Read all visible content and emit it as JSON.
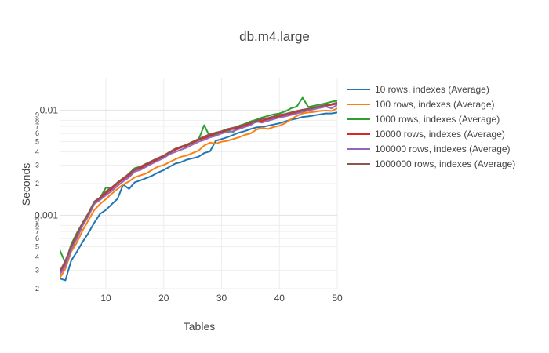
{
  "chart_data": {
    "type": "line",
    "title": "db.m4.large",
    "xlabel": "Tables",
    "ylabel": "Seconds",
    "xlim": [
      2,
      50
    ],
    "ylim": [
      0.0002,
      0.02
    ],
    "yscale": "log",
    "grid": true,
    "legend_position": "right",
    "x_ticks": [
      10,
      20,
      30,
      40,
      50
    ],
    "y_major_ticks": [
      {
        "value": 0.001,
        "label": "0.001"
      },
      {
        "value": 0.01,
        "label": "0.01"
      }
    ],
    "y_minor_ticks": [
      {
        "value": 0.0002,
        "label": "2"
      },
      {
        "value": 0.0003,
        "label": "3"
      },
      {
        "value": 0.0004,
        "label": "4"
      },
      {
        "value": 0.0005,
        "label": "5"
      },
      {
        "value": 0.0006,
        "label": "6"
      },
      {
        "value": 0.0007,
        "label": "7"
      },
      {
        "value": 0.0008,
        "label": "8"
      },
      {
        "value": 0.0009,
        "label": "9"
      },
      {
        "value": 0.002,
        "label": "2"
      },
      {
        "value": 0.003,
        "label": "3"
      },
      {
        "value": 0.004,
        "label": "4"
      },
      {
        "value": 0.005,
        "label": "5"
      },
      {
        "value": 0.006,
        "label": "6"
      },
      {
        "value": 0.007,
        "label": "7"
      },
      {
        "value": 0.008,
        "label": "8"
      },
      {
        "value": 0.009,
        "label": "9"
      }
    ],
    "series": [
      {
        "name": "10 rows, indexes (Average)",
        "color": "#1f77b4",
        "x": [
          2,
          3,
          4,
          5,
          6,
          7,
          8,
          9,
          10,
          11,
          12,
          13,
          14,
          15,
          16,
          17,
          18,
          19,
          20,
          21,
          22,
          23,
          24,
          25,
          26,
          27,
          28,
          29,
          30,
          31,
          32,
          33,
          34,
          35,
          36,
          37,
          38,
          39,
          40,
          41,
          42,
          43,
          44,
          45,
          46,
          47,
          48,
          49,
          50
        ],
        "y": [
          0.00025,
          0.00024,
          0.00037,
          0.00045,
          0.00056,
          0.00068,
          0.00085,
          0.00103,
          0.00112,
          0.00127,
          0.00143,
          0.00196,
          0.00178,
          0.00206,
          0.00215,
          0.00226,
          0.00238,
          0.00255,
          0.00269,
          0.00289,
          0.0031,
          0.0032,
          0.00338,
          0.00348,
          0.0036,
          0.0039,
          0.00405,
          0.0051,
          0.0053,
          0.00552,
          0.0058,
          0.0061,
          0.0063,
          0.0066,
          0.00685,
          0.0069,
          0.0071,
          0.0073,
          0.0075,
          0.0078,
          0.0081,
          0.0083,
          0.0086,
          0.0087,
          0.0089,
          0.0091,
          0.0093,
          0.0093,
          0.0095
        ]
      },
      {
        "name": "100 rows, indexes (Average)",
        "color": "#ff7f0e",
        "x": [
          2,
          3,
          4,
          5,
          6,
          7,
          8,
          9,
          10,
          11,
          12,
          13,
          14,
          15,
          16,
          17,
          18,
          19,
          20,
          21,
          22,
          23,
          24,
          25,
          26,
          27,
          28,
          29,
          30,
          31,
          32,
          33,
          34,
          35,
          36,
          37,
          38,
          39,
          40,
          41,
          42,
          43,
          44,
          45,
          46,
          47,
          48,
          49,
          50
        ],
        "y": [
          0.00025,
          0.00031,
          0.00045,
          0.00055,
          0.00072,
          0.0009,
          0.00112,
          0.00128,
          0.00142,
          0.0016,
          0.00178,
          0.00196,
          0.0021,
          0.0023,
          0.0024,
          0.0025,
          0.0027,
          0.0029,
          0.003,
          0.0032,
          0.0034,
          0.0036,
          0.0037,
          0.0039,
          0.0041,
          0.0046,
          0.0049,
          0.0048,
          0.005,
          0.0051,
          0.0053,
          0.0055,
          0.0058,
          0.006,
          0.0065,
          0.0068,
          0.0066,
          0.0069,
          0.0071,
          0.0075,
          0.0082,
          0.0088,
          0.0093,
          0.0095,
          0.0096,
          0.0098,
          0.0099,
          0.0098,
          0.0104
        ]
      },
      {
        "name": "1000 rows, indexes (Average)",
        "color": "#2ca02c",
        "x": [
          2,
          3,
          4,
          5,
          6,
          7,
          8,
          9,
          10,
          11,
          12,
          13,
          14,
          15,
          16,
          17,
          18,
          19,
          20,
          21,
          22,
          23,
          24,
          25,
          26,
          27,
          28,
          29,
          30,
          31,
          32,
          33,
          34,
          35,
          36,
          37,
          38,
          39,
          40,
          41,
          42,
          43,
          44,
          45,
          46,
          47,
          48,
          49,
          50
        ],
        "y": [
          0.00047,
          0.00035,
          0.00053,
          0.00068,
          0.00085,
          0.00105,
          0.00135,
          0.00147,
          0.00183,
          0.0018,
          0.00205,
          0.0022,
          0.0025,
          0.0028,
          0.0029,
          0.0031,
          0.0032,
          0.0034,
          0.0036,
          0.0039,
          0.0042,
          0.0044,
          0.0046,
          0.0049,
          0.0052,
          0.0072,
          0.0055,
          0.0058,
          0.0061,
          0.0064,
          0.0062,
          0.0071,
          0.0074,
          0.0078,
          0.0081,
          0.0085,
          0.0088,
          0.0091,
          0.0093,
          0.0097,
          0.0104,
          0.0108,
          0.0131,
          0.0107,
          0.011,
          0.0113,
          0.0116,
          0.012,
          0.0123
        ]
      },
      {
        "name": "10000 rows, indexes (Average)",
        "color": "#d62728",
        "x": [
          2,
          3,
          4,
          5,
          6,
          7,
          8,
          9,
          10,
          11,
          12,
          13,
          14,
          15,
          16,
          17,
          18,
          19,
          20,
          21,
          22,
          23,
          24,
          25,
          26,
          27,
          28,
          29,
          30,
          31,
          32,
          33,
          34,
          35,
          36,
          37,
          38,
          39,
          40,
          41,
          42,
          43,
          44,
          45,
          46,
          47,
          48,
          49,
          50
        ],
        "y": [
          0.00028,
          0.00035,
          0.00049,
          0.00063,
          0.00082,
          0.00102,
          0.00132,
          0.00145,
          0.00162,
          0.00178,
          0.002,
          0.0022,
          0.0024,
          0.0027,
          0.0028,
          0.003,
          0.0032,
          0.0034,
          0.0036,
          0.0039,
          0.0042,
          0.0044,
          0.0046,
          0.0049,
          0.0052,
          0.0054,
          0.0057,
          0.006,
          0.0062,
          0.0065,
          0.0066,
          0.0068,
          0.0071,
          0.0074,
          0.0077,
          0.0079,
          0.0082,
          0.0084,
          0.0087,
          0.0089,
          0.0092,
          0.0095,
          0.0098,
          0.0101,
          0.0104,
          0.0107,
          0.011,
          0.0112,
          0.0115
        ]
      },
      {
        "name": "100000 rows, indexes (Average)",
        "color": "#9467bd",
        "x": [
          2,
          3,
          4,
          5,
          6,
          7,
          8,
          9,
          10,
          11,
          12,
          13,
          14,
          15,
          16,
          17,
          18,
          19,
          20,
          21,
          22,
          23,
          24,
          25,
          26,
          27,
          28,
          29,
          30,
          31,
          32,
          33,
          34,
          35,
          36,
          37,
          38,
          39,
          40,
          41,
          42,
          43,
          44,
          45,
          46,
          47,
          48,
          49,
          50
        ],
        "y": [
          0.00027,
          0.00033,
          0.00047,
          0.0006,
          0.0008,
          0.00098,
          0.00128,
          0.0014,
          0.00155,
          0.0017,
          0.0019,
          0.0021,
          0.0023,
          0.0026,
          0.0027,
          0.0029,
          0.0031,
          0.0033,
          0.0035,
          0.0038,
          0.004,
          0.0042,
          0.0044,
          0.0047,
          0.005,
          0.0052,
          0.0055,
          0.0057,
          0.006,
          0.0062,
          0.0063,
          0.0066,
          0.0069,
          0.0072,
          0.0078,
          0.0076,
          0.0079,
          0.0082,
          0.0085,
          0.0087,
          0.009,
          0.0093,
          0.0096,
          0.0099,
          0.0102,
          0.0105,
          0.0108,
          0.0104,
          0.0112
        ]
      },
      {
        "name": "1000000 rows, indexes (Average)",
        "color": "#8c564b",
        "x": [
          2,
          3,
          4,
          5,
          6,
          7,
          8,
          9,
          10,
          11,
          12,
          13,
          14,
          15,
          16,
          17,
          18,
          19,
          20,
          21,
          22,
          23,
          24,
          25,
          26,
          27,
          28,
          29,
          30,
          31,
          32,
          33,
          34,
          35,
          36,
          37,
          38,
          39,
          40,
          41,
          42,
          43,
          44,
          45,
          46,
          47,
          48,
          49,
          50
        ],
        "y": [
          0.00029,
          0.00037,
          0.00051,
          0.00066,
          0.00085,
          0.00105,
          0.00135,
          0.00148,
          0.00168,
          0.00184,
          0.00205,
          0.00226,
          0.00248,
          0.00275,
          0.0029,
          0.0031,
          0.0033,
          0.0035,
          0.0037,
          0.004,
          0.0043,
          0.0045,
          0.0047,
          0.005,
          0.0053,
          0.0056,
          0.0059,
          0.0061,
          0.0063,
          0.0066,
          0.0068,
          0.007,
          0.0073,
          0.0076,
          0.0079,
          0.0082,
          0.0084,
          0.0087,
          0.009,
          0.0092,
          0.0095,
          0.0098,
          0.0101,
          0.0103,
          0.0106,
          0.0109,
          0.0112,
          0.0114,
          0.0118
        ]
      }
    ]
  }
}
